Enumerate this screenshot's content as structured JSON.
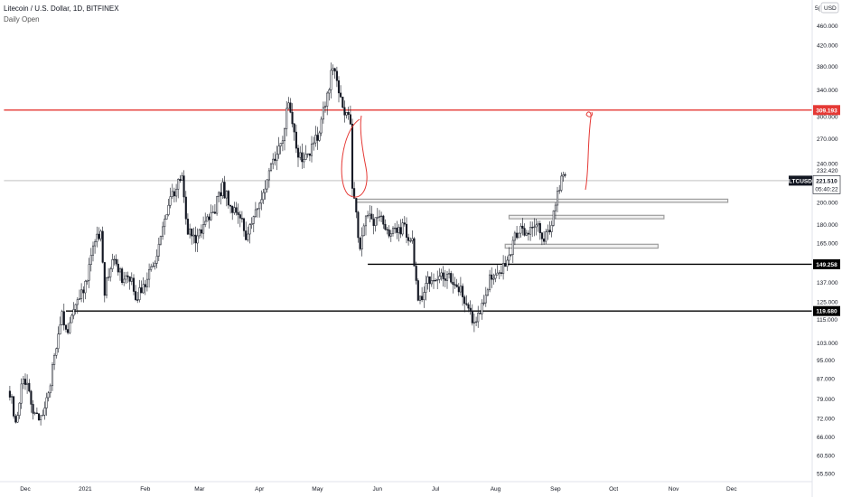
{
  "header": {
    "title": "Litecoin / U.S. Dollar, 1D, BITFINEX",
    "subtitle": "Daily Open"
  },
  "currency_badge": "USD",
  "currency_prefix": "5(",
  "colors": {
    "candle": "#131722",
    "resistance": "#e53935",
    "support": "#000000",
    "zone": "#9e9e9e",
    "annotation": "#e53935",
    "price_line": "#9e9e9e"
  },
  "chart_data": {
    "type": "candlestick",
    "symbol": "LTCUSD",
    "ylim": [
      52,
      500
    ],
    "y_scale": "log",
    "y_ticks": [
      {
        "label": "460.000",
        "value": 460
      },
      {
        "label": "420.000",
        "value": 420
      },
      {
        "label": "380.000",
        "value": 380
      },
      {
        "label": "340.000",
        "value": 340
      },
      {
        "label": "300.000",
        "value": 300
      },
      {
        "label": "270.000",
        "value": 270
      },
      {
        "label": "240.000",
        "value": 240
      },
      {
        "label": "232.420",
        "value": 232.42
      },
      {
        "label": "200.000",
        "value": 200
      },
      {
        "label": "180.000",
        "value": 180
      },
      {
        "label": "165.000",
        "value": 165
      },
      {
        "label": "137.000",
        "value": 137
      },
      {
        "label": "125.000",
        "value": 125
      },
      {
        "label": "115.000",
        "value": 115
      },
      {
        "label": "103.000",
        "value": 103
      },
      {
        "label": "95.000",
        "value": 95
      },
      {
        "label": "87.000",
        "value": 87
      },
      {
        "label": "79.000",
        "value": 79
      },
      {
        "label": "72.000",
        "value": 72
      },
      {
        "label": "66.000",
        "value": 66
      },
      {
        "label": "60.500",
        "value": 60.5
      },
      {
        "label": "55.500",
        "value": 55.5
      }
    ],
    "x_ticks": [
      {
        "label": "Dec",
        "date": "2020-12-01"
      },
      {
        "label": "2021",
        "date": "2021-01-01"
      },
      {
        "label": "Feb",
        "date": "2021-02-01"
      },
      {
        "label": "Mar",
        "date": "2021-03-01"
      },
      {
        "label": "Apr",
        "date": "2021-04-01"
      },
      {
        "label": "May",
        "date": "2021-05-01"
      },
      {
        "label": "Jun",
        "date": "2021-06-01"
      },
      {
        "label": "Jul",
        "date": "2021-07-01"
      },
      {
        "label": "Aug",
        "date": "2021-08-01"
      },
      {
        "label": "Sep",
        "date": "2021-09-01"
      },
      {
        "label": "Oct",
        "date": "2021-10-01"
      },
      {
        "label": "Nov",
        "date": "2021-11-01"
      },
      {
        "label": "Dec",
        "date": "2021-12-01"
      }
    ],
    "price_anchors": [
      [
        "2020-11-23",
        82
      ],
      [
        "2020-11-26",
        70
      ],
      [
        "2020-11-30",
        88
      ],
      [
        "2020-12-05",
        76
      ],
      [
        "2020-12-10",
        72
      ],
      [
        "2020-12-16",
        95
      ],
      [
        "2020-12-20",
        118
      ],
      [
        "2020-12-23",
        108
      ],
      [
        "2020-12-27",
        125
      ],
      [
        "2020-12-31",
        130
      ],
      [
        "2021-01-05",
        160
      ],
      [
        "2021-01-09",
        175
      ],
      [
        "2021-01-11",
        130
      ],
      [
        "2021-01-15",
        155
      ],
      [
        "2021-01-20",
        140
      ],
      [
        "2021-01-23",
        145
      ],
      [
        "2021-01-27",
        128
      ],
      [
        "2021-02-02",
        140
      ],
      [
        "2021-02-07",
        155
      ],
      [
        "2021-02-12",
        190
      ],
      [
        "2021-02-17",
        215
      ],
      [
        "2021-02-20",
        225
      ],
      [
        "2021-02-23",
        175
      ],
      [
        "2021-02-27",
        168
      ],
      [
        "2021-03-04",
        185
      ],
      [
        "2021-03-09",
        195
      ],
      [
        "2021-03-13",
        215
      ],
      [
        "2021-03-17",
        195
      ],
      [
        "2021-03-21",
        190
      ],
      [
        "2021-03-25",
        172
      ],
      [
        "2021-03-30",
        195
      ],
      [
        "2021-04-03",
        210
      ],
      [
        "2021-04-08",
        240
      ],
      [
        "2021-04-12",
        260
      ],
      [
        "2021-04-16",
        325
      ],
      [
        "2021-04-20",
        255
      ],
      [
        "2021-04-24",
        240
      ],
      [
        "2021-04-28",
        260
      ],
      [
        "2021-05-02",
        280
      ],
      [
        "2021-05-06",
        330
      ],
      [
        "2021-05-09",
        385
      ],
      [
        "2021-05-11",
        360
      ],
      [
        "2021-05-13",
        320
      ],
      [
        "2021-05-16",
        300
      ],
      [
        "2021-05-18",
        290
      ],
      [
        "2021-05-19",
        215
      ],
      [
        "2021-05-21",
        190
      ],
      [
        "2021-05-23",
        160
      ],
      [
        "2021-05-26",
        190
      ],
      [
        "2021-05-30",
        180
      ],
      [
        "2021-06-03",
        190
      ],
      [
        "2021-06-07",
        170
      ],
      [
        "2021-06-11",
        175
      ],
      [
        "2021-06-15",
        178
      ],
      [
        "2021-06-19",
        165
      ],
      [
        "2021-06-22",
        125
      ],
      [
        "2021-06-24",
        130
      ],
      [
        "2021-06-28",
        140
      ],
      [
        "2021-07-02",
        142
      ],
      [
        "2021-07-06",
        140
      ],
      [
        "2021-07-10",
        138
      ],
      [
        "2021-07-14",
        132
      ],
      [
        "2021-07-18",
        120
      ],
      [
        "2021-07-21",
        112
      ],
      [
        "2021-07-25",
        125
      ],
      [
        "2021-07-29",
        138
      ],
      [
        "2021-08-02",
        140
      ],
      [
        "2021-08-06",
        150
      ],
      [
        "2021-08-10",
        165
      ],
      [
        "2021-08-14",
        180
      ],
      [
        "2021-08-18",
        172
      ],
      [
        "2021-08-22",
        180
      ],
      [
        "2021-08-26",
        170
      ],
      [
        "2021-08-30",
        180
      ],
      [
        "2021-09-02",
        210
      ],
      [
        "2021-09-05",
        230
      ],
      [
        "2021-09-06",
        222
      ]
    ],
    "horizontal_levels": [
      {
        "price": 309.193,
        "label": "309.193",
        "style": "resistance",
        "start_date": "2020-11-20"
      },
      {
        "price": 149.258,
        "label": "149.258",
        "style": "support",
        "start_date": "2021-05-27"
      },
      {
        "price": 119.68,
        "label": "119.680",
        "style": "support",
        "start_date": "2020-12-22"
      },
      {
        "price": 221.51,
        "label": "221.510",
        "style": "price_line",
        "start_date": "2020-11-20"
      }
    ],
    "zones": [
      {
        "from_date": "2021-05-21",
        "to_date": "2021-11-29",
        "low": 200,
        "high": 203
      },
      {
        "from_date": "2021-08-08",
        "to_date": "2021-10-27",
        "low": 185,
        "high": 188
      },
      {
        "from_date": "2021-08-06",
        "to_date": "2021-10-24",
        "low": 161,
        "high": 164
      }
    ],
    "last_price": {
      "symbol": "LTCUSD",
      "price": 221.51,
      "price_label": "221.510",
      "countdown": "05:40:22",
      "high_label": "232.420"
    }
  }
}
